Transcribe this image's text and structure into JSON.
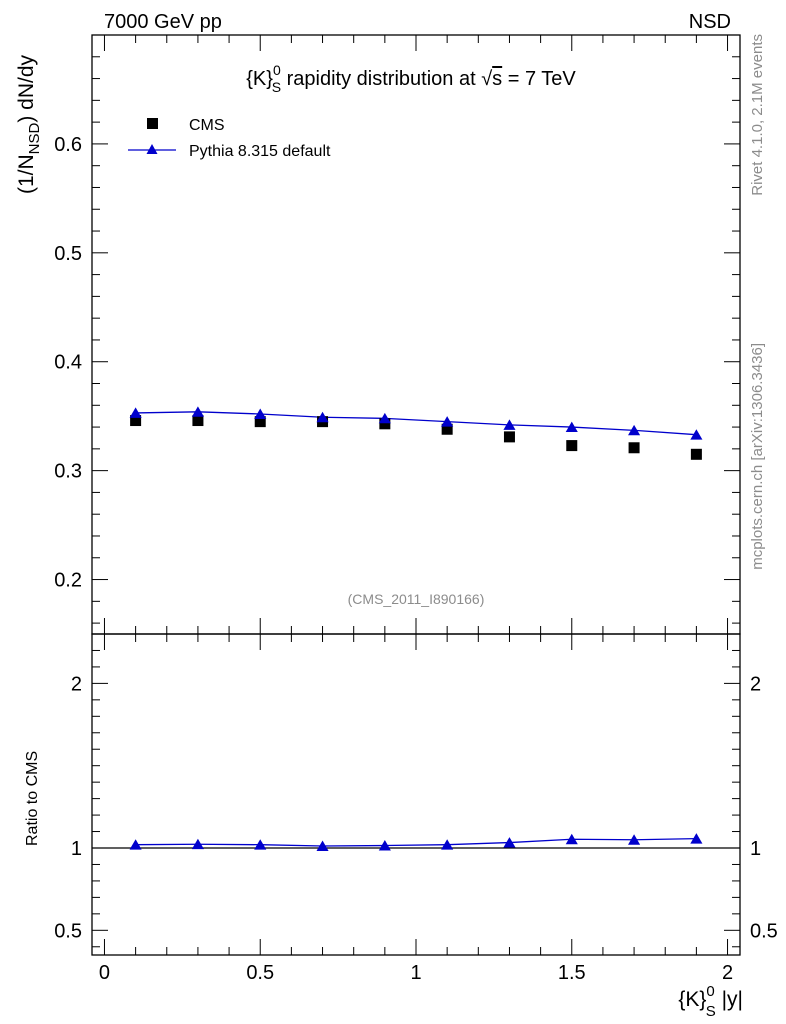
{
  "header": {
    "left": "7000 GeV pp",
    "right": "NSD"
  },
  "side_labels": {
    "rivet": "Rivet 4.1.0,  2.1M events",
    "mcplots": "mcplots.cern.ch [arXiv:1306.3436]"
  },
  "title": {
    "pre": "{K}",
    "sup": "0",
    "sub": "S",
    "mid": " rapidity distribution at ",
    "sqrt": "√",
    "s": "s",
    "post": " = 7 TeV"
  },
  "ylabel": {
    "pre": "(1/N",
    "sub": "NSD",
    "post": ") dN/dy"
  },
  "xlabel": {
    "pre": "{K}",
    "sup": "0",
    "sub": "S",
    "post": " |y|"
  },
  "ratio_ylabel": "Ratio to CMS",
  "analysis_tag": "(CMS_2011_I890166)",
  "legend": {
    "data_label": "CMS",
    "mc_label": "Pythia 8.315 default"
  },
  "colors": {
    "data": "#000000",
    "mc": "#0000cc",
    "grey": "#8c8c8c"
  },
  "chart_data": {
    "type": "scatter",
    "x": [
      0.1,
      0.3,
      0.5,
      0.7,
      0.9,
      1.1,
      1.3,
      1.5,
      1.7,
      1.9
    ],
    "xlim": [
      -0.04,
      2.04
    ],
    "xticks": [
      0,
      0.5,
      1,
      1.5,
      2
    ],
    "xtick_labels": [
      "0",
      "0.5",
      "1",
      "1.5",
      "2"
    ],
    "main": {
      "ylim": [
        0.15,
        0.7
      ],
      "yticks": [
        0.2,
        0.3,
        0.4,
        0.5,
        0.6
      ],
      "ytick_labels": [
        "0.2",
        "0.3",
        "0.4",
        "0.5",
        "0.6"
      ],
      "series": [
        {
          "name": "CMS",
          "marker": "square",
          "values": [
            0.346,
            0.346,
            0.345,
            0.345,
            0.343,
            0.338,
            0.331,
            0.323,
            0.321,
            0.315
          ]
        },
        {
          "name": "Pythia 8.315 default",
          "marker": "triangle",
          "line": true,
          "values": [
            0.353,
            0.354,
            0.352,
            0.349,
            0.348,
            0.345,
            0.342,
            0.34,
            0.337,
            0.333
          ]
        }
      ]
    },
    "ratio": {
      "ylim": [
        0.35,
        2.3
      ],
      "yticks": [
        0.5,
        1,
        2
      ],
      "ytick_labels": [
        "0.5",
        "1",
        "2"
      ],
      "reference": 1,
      "series": [
        {
          "name": "Pythia 8.315 default",
          "marker": "triangle",
          "line": true,
          "values": [
            1.02,
            1.023,
            1.02,
            1.012,
            1.015,
            1.02,
            1.033,
            1.053,
            1.05,
            1.057
          ]
        }
      ]
    }
  }
}
